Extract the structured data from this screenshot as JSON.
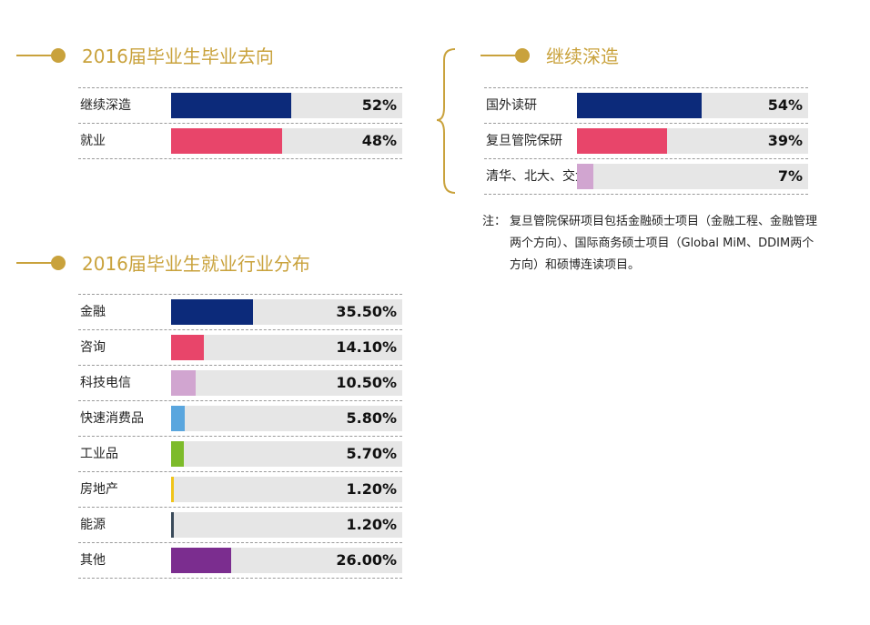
{
  "colors": {
    "accent": "#c9a23c",
    "track": "#e6e6e6"
  },
  "titles": {
    "destination": "2016届毕业生毕业去向",
    "further_study": "继续深造",
    "industry": "2016届毕业生就业行业分布"
  },
  "note": {
    "prefix": "注：",
    "text": "复旦管院保研项目包括金融硕士项目（金融工程、金融管理两个方向）、国际商务硕士项目（Global MiM、DDIM两个方向）和硕博连读项目。"
  },
  "chart_data": [
    {
      "type": "bar",
      "title": "2016届毕业生毕业去向",
      "categories": [
        "继续深造",
        "就业"
      ],
      "values": [
        52,
        48
      ],
      "value_labels": [
        "52%",
        "48%"
      ],
      "colors": [
        "#0c2a7a",
        "#e8456a"
      ],
      "xlim": [
        0,
        100
      ]
    },
    {
      "type": "bar",
      "title": "继续深造",
      "categories": [
        "国外读研",
        "复旦管院保研",
        "清华、北大、交大"
      ],
      "values": [
        54,
        39,
        7
      ],
      "value_labels": [
        "54%",
        "39%",
        "7%"
      ],
      "colors": [
        "#0c2a7a",
        "#e8456a",
        "#d1a5d0"
      ],
      "xlim": [
        0,
        100
      ]
    },
    {
      "type": "bar",
      "title": "2016届毕业生就业行业分布",
      "categories": [
        "金融",
        "咨询",
        "科技电信",
        "快速消费品",
        "工业品",
        "房地产",
        "能源",
        "其他"
      ],
      "values": [
        35.5,
        14.1,
        10.5,
        5.8,
        5.7,
        1.2,
        1.2,
        26.0
      ],
      "value_labels": [
        "35.50%",
        "14.10%",
        "10.50%",
        "5.80%",
        "5.70%",
        "1.20%",
        "1.20%",
        "26.00%"
      ],
      "colors": [
        "#0c2a7a",
        "#e8456a",
        "#d1a5d0",
        "#5aa6de",
        "#7dbb2a",
        "#f0c419",
        "#3a4a5a",
        "#7b2d8f"
      ],
      "xlim": [
        0,
        100
      ]
    }
  ]
}
